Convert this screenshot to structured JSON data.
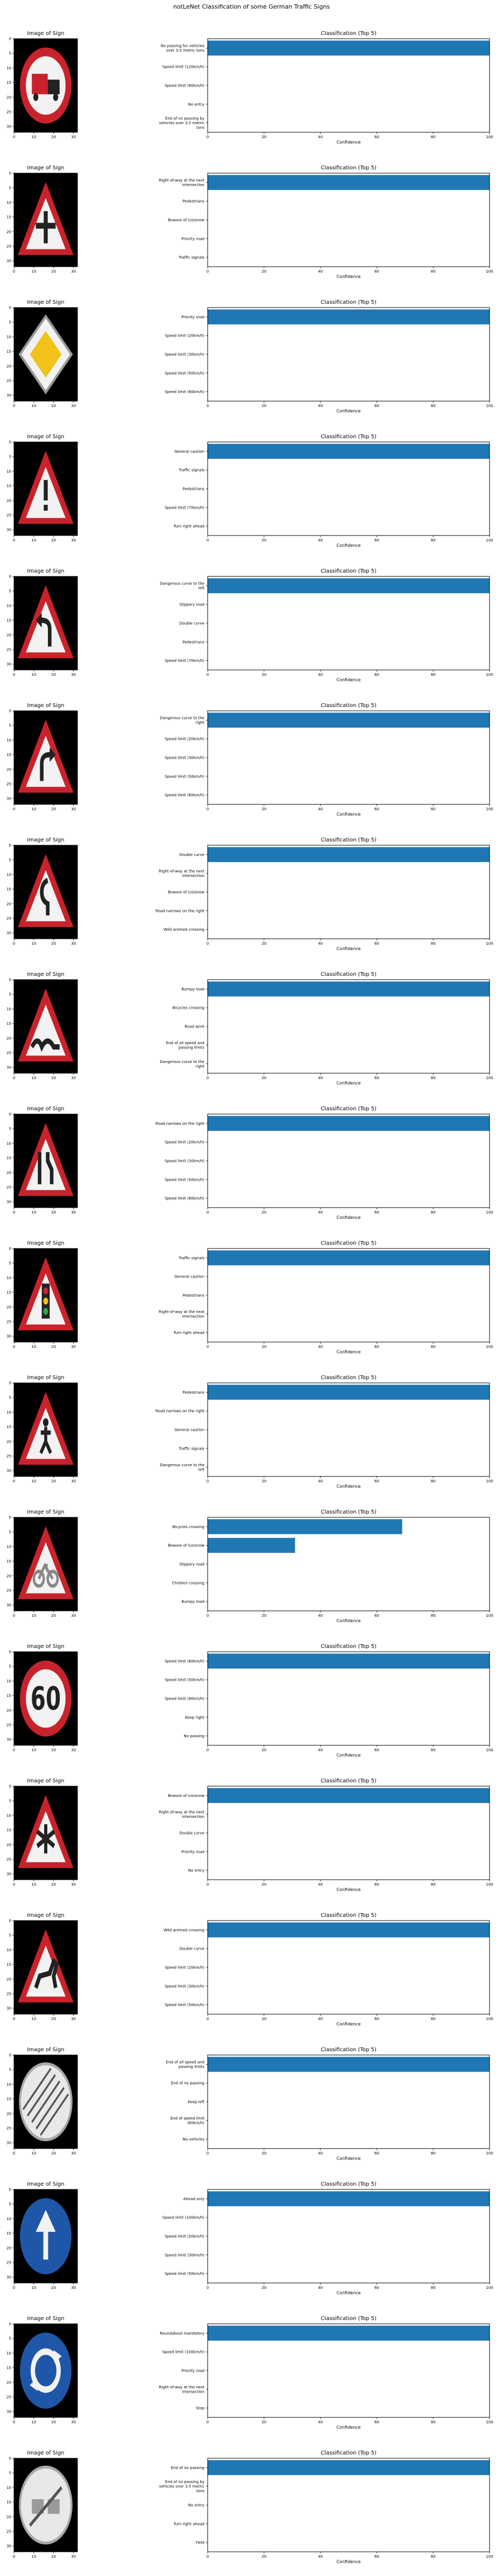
{
  "figure": {
    "title": "notLeNet Classification of some German Traffic Signs"
  },
  "colors": {
    "bar": "#1f77b4",
    "sign_red": "#c8232c",
    "sign_white": "#f2f2f2",
    "sign_blue": "#1f57a8",
    "sign_yellow": "#f2c21b",
    "background": "#000000"
  },
  "image_panel": {
    "title": "Image of Sign",
    "xticks": [
      "0",
      "10",
      "20",
      "30"
    ],
    "yticks": [
      "0",
      "5",
      "10",
      "15",
      "20",
      "25",
      "30"
    ]
  },
  "bar_panel": {
    "title": "Classification (Top 5)",
    "xlabel": "Confidence",
    "xticks": [
      "0",
      "20",
      "40",
      "60",
      "80",
      "100"
    ],
    "xlim": [
      0,
      100
    ]
  },
  "chart_data": [
    {
      "type": "bar",
      "orientation": "horizontal",
      "sign": "no-heavy-vehicles-icon",
      "categories": [
        "No passing for vehicles over 3.5 metric tons",
        "Speed limit (120km/h)",
        "Speed limit (80km/h)",
        "No entry",
        "End of no passing by vehicles over 3.5 metric tons"
      ],
      "values": [
        100,
        0,
        0,
        0,
        0
      ],
      "xlim": [
        0,
        100
      ]
    },
    {
      "type": "bar",
      "orientation": "horizontal",
      "sign": "right-of-way-icon",
      "categories": [
        "Right-of-way at the next intersection",
        "Pedestrians",
        "Beware of ice/snow",
        "Priority road",
        "Traffic signals"
      ],
      "values": [
        100,
        0,
        0,
        0,
        0
      ],
      "xlim": [
        0,
        100
      ]
    },
    {
      "type": "bar",
      "orientation": "horizontal",
      "sign": "priority-road-icon",
      "categories": [
        "Priority road",
        "Speed limit (20km/h)",
        "Speed limit (30km/h)",
        "Speed limit (50km/h)",
        "Speed limit (60km/h)"
      ],
      "values": [
        100,
        0,
        0,
        0,
        0
      ],
      "xlim": [
        0,
        100
      ]
    },
    {
      "type": "bar",
      "orientation": "horizontal",
      "sign": "general-caution-icon",
      "categories": [
        "General caution",
        "Traffic signals",
        "Pedestrians",
        "Speed limit (70km/h)",
        "Turn right ahead"
      ],
      "values": [
        100,
        0,
        0,
        0,
        0
      ],
      "xlim": [
        0,
        100
      ]
    },
    {
      "type": "bar",
      "orientation": "horizontal",
      "sign": "curve-left-icon",
      "categories": [
        "Dangerous curve to the left",
        "Slippery road",
        "Double curve",
        "Pedestrians",
        "Speed limit (70km/h)"
      ],
      "values": [
        100,
        0,
        0,
        0,
        0
      ],
      "xlim": [
        0,
        100
      ]
    },
    {
      "type": "bar",
      "orientation": "horizontal",
      "sign": "curve-right-icon",
      "categories": [
        "Dangerous curve to the right",
        "Speed limit (20km/h)",
        "Speed limit (30km/h)",
        "Speed limit (50km/h)",
        "Speed limit (60km/h)"
      ],
      "values": [
        100,
        0,
        0,
        0,
        0
      ],
      "xlim": [
        0,
        100
      ]
    },
    {
      "type": "bar",
      "orientation": "horizontal",
      "sign": "double-curve-icon",
      "categories": [
        "Double curve",
        "Right-of-way at the next intersection",
        "Beware of ice/snow",
        "Road narrows on the right",
        "Wild animals crossing"
      ],
      "values": [
        100,
        0,
        0,
        0,
        0
      ],
      "xlim": [
        0,
        100
      ]
    },
    {
      "type": "bar",
      "orientation": "horizontal",
      "sign": "bumpy-road-icon",
      "categories": [
        "Bumpy road",
        "Bicycles crossing",
        "Road work",
        "End of all speed and passing limits",
        "Dangerous curve to the right"
      ],
      "values": [
        100,
        0,
        0,
        0,
        0
      ],
      "xlim": [
        0,
        100
      ]
    },
    {
      "type": "bar",
      "orientation": "horizontal",
      "sign": "road-narrows-icon",
      "categories": [
        "Road narrows on the right",
        "Speed limit (20km/h)",
        "Speed limit (30km/h)",
        "Speed limit (50km/h)",
        "Speed limit (60km/h)"
      ],
      "values": [
        100,
        0,
        0,
        0,
        0
      ],
      "xlim": [
        0,
        100
      ]
    },
    {
      "type": "bar",
      "orientation": "horizontal",
      "sign": "traffic-signals-icon",
      "categories": [
        "Traffic signals",
        "General caution",
        "Pedestrians",
        "Right-of-way at the next intersection",
        "Turn right ahead"
      ],
      "values": [
        100,
        0,
        0,
        0,
        0
      ],
      "xlim": [
        0,
        100
      ]
    },
    {
      "type": "bar",
      "orientation": "horizontal",
      "sign": "pedestrians-icon",
      "categories": [
        "Pedestrians",
        "Road narrows on the right",
        "General caution",
        "Traffic signals",
        "Dangerous curve to the left"
      ],
      "values": [
        100,
        0,
        0,
        0,
        0
      ],
      "xlim": [
        0,
        100
      ]
    },
    {
      "type": "bar",
      "orientation": "horizontal",
      "sign": "bicycles-crossing-icon",
      "categories": [
        "Bicycles crossing",
        "Beware of ice/snow",
        "Slippery road",
        "Children crossing",
        "Bumpy road"
      ],
      "values": [
        69,
        31,
        0,
        0,
        0
      ],
      "xlim": [
        0,
        100
      ]
    },
    {
      "type": "bar",
      "orientation": "horizontal",
      "sign": "speed-limit-60-icon",
      "categories": [
        "Speed limit (60km/h)",
        "Speed limit (50km/h)",
        "Speed limit (80km/h)",
        "Keep right",
        "No passing"
      ],
      "values": [
        100,
        0,
        0,
        0,
        0
      ],
      "xlim": [
        0,
        100
      ]
    },
    {
      "type": "bar",
      "orientation": "horizontal",
      "sign": "ice-snow-icon",
      "categories": [
        "Beware of ice/snow",
        "Right-of-way at the next intersection",
        "Double curve",
        "Priority road",
        "No entry"
      ],
      "values": [
        100,
        0,
        0,
        0,
        0
      ],
      "xlim": [
        0,
        100
      ]
    },
    {
      "type": "bar",
      "orientation": "horizontal",
      "sign": "wild-animals-icon",
      "categories": [
        "Wild animals crossing",
        "Double curve",
        "Speed limit (20km/h)",
        "Speed limit (30km/h)",
        "Speed limit (50km/h)"
      ],
      "values": [
        100,
        0,
        0,
        0,
        0
      ],
      "xlim": [
        0,
        100
      ]
    },
    {
      "type": "bar",
      "orientation": "horizontal",
      "sign": "end-of-limits-icon",
      "categories": [
        "End of all speed and passing limits",
        "End of no passing",
        "Keep left",
        "End of speed limit (80km/h)",
        "No vehicles"
      ],
      "values": [
        100,
        0,
        0,
        0,
        0
      ],
      "xlim": [
        0,
        100
      ]
    },
    {
      "type": "bar",
      "orientation": "horizontal",
      "sign": "ahead-only-icon",
      "categories": [
        "Ahead only",
        "Speed limit (100km/h)",
        "Speed limit (20km/h)",
        "Speed limit (30km/h)",
        "Speed limit (50km/h)"
      ],
      "values": [
        100,
        0,
        0,
        0,
        0
      ],
      "xlim": [
        0,
        100
      ]
    },
    {
      "type": "bar",
      "orientation": "horizontal",
      "sign": "roundabout-icon",
      "categories": [
        "Roundabout mandatory",
        "Speed limit (100km/h)",
        "Priority road",
        "Right-of-way at the next intersection",
        "Stop"
      ],
      "values": [
        100,
        0,
        0,
        0,
        0
      ],
      "xlim": [
        0,
        100
      ]
    },
    {
      "type": "bar",
      "orientation": "horizontal",
      "sign": "end-no-passing-icon",
      "categories": [
        "End of no passing",
        "End of no passing by vehicles over 3.5 metric tons",
        "No entry",
        "Turn right ahead",
        "Yield"
      ],
      "values": [
        100,
        0,
        0,
        0,
        0
      ],
      "xlim": [
        0,
        100
      ]
    }
  ]
}
